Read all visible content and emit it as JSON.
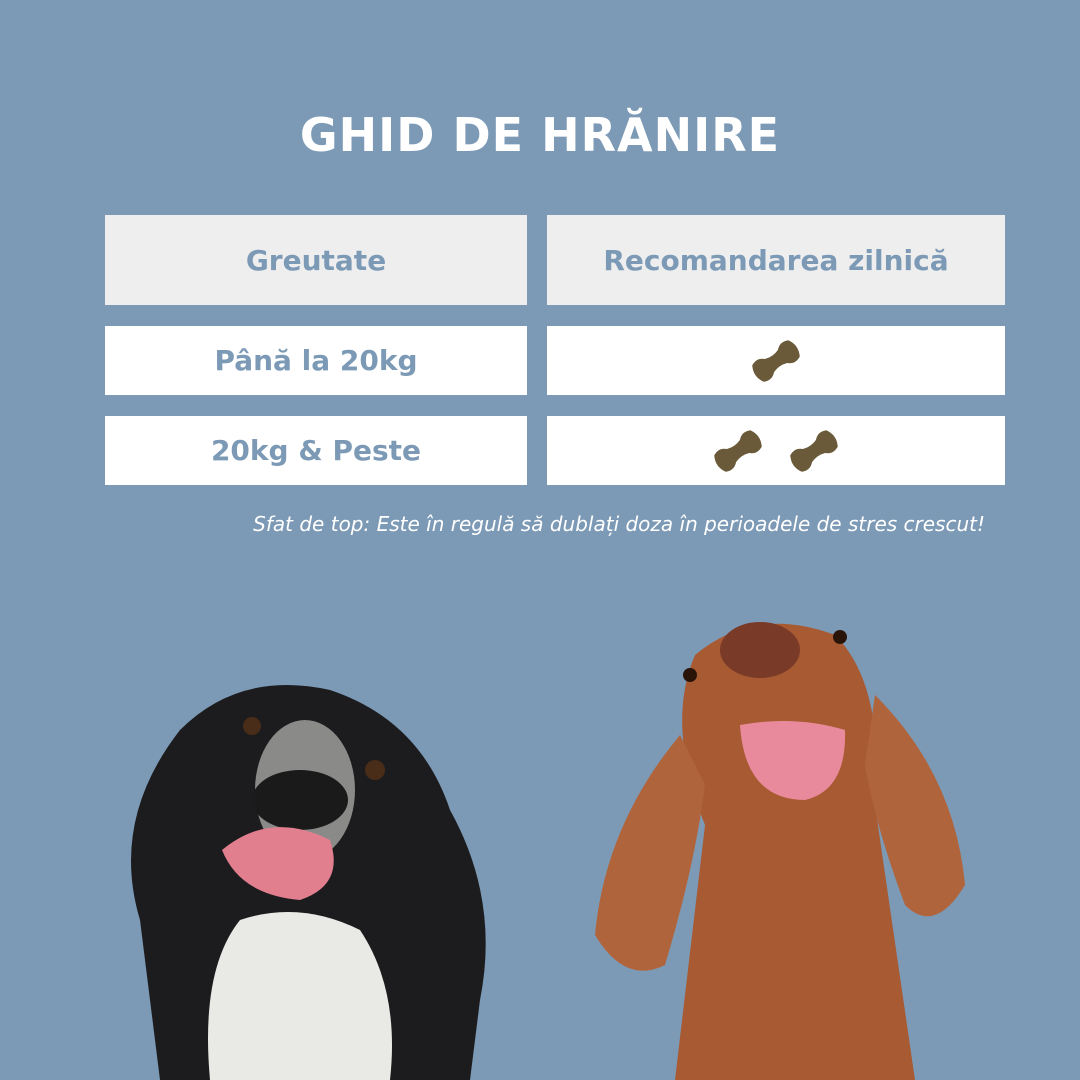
{
  "title": "GHID DE HRĂNIRE",
  "table": {
    "headers": [
      "Greutate",
      "Recomandarea zilnică"
    ],
    "rows": [
      {
        "weight": "Până la 20kg",
        "treats": 1
      },
      {
        "weight": "20kg & Peste",
        "treats": 2
      }
    ]
  },
  "tip": "Sfat de top: Este în regulă să dublați doza în perioadele de stres crescut!",
  "colors": {
    "background": "#7c9ab6",
    "header_cell": "#eeeeee",
    "treat": "#6b5a3a"
  },
  "icons": [
    "bone-treat-icon"
  ]
}
